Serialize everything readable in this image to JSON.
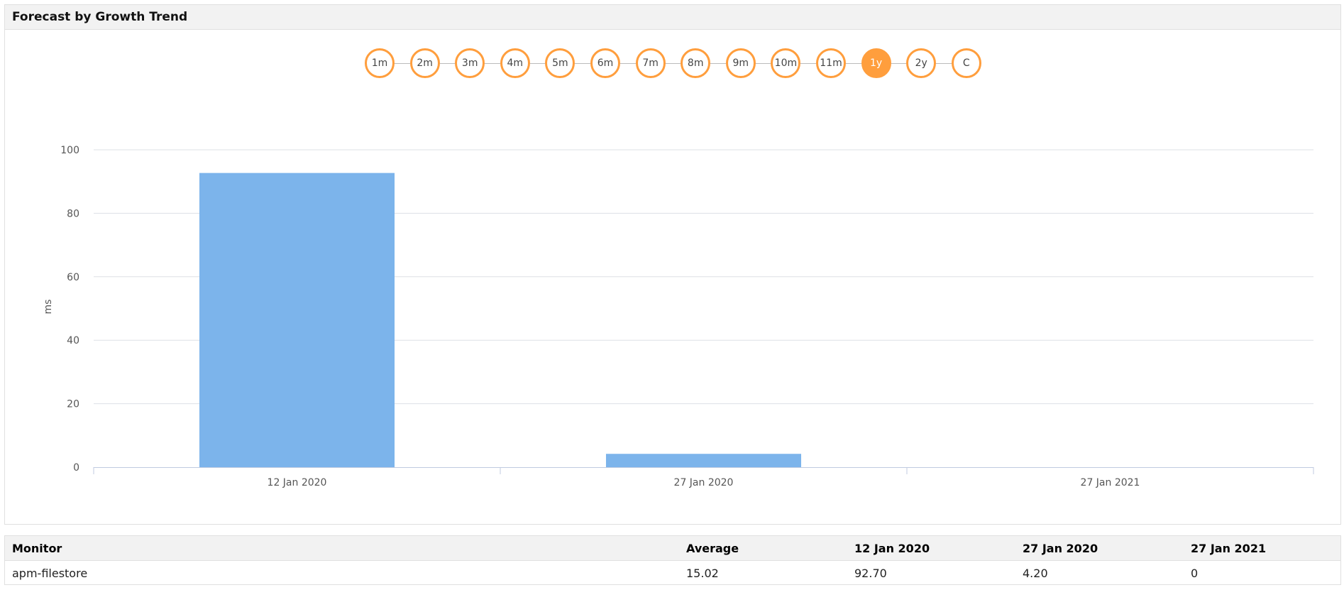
{
  "panel": {
    "title": "Forecast by Growth Trend"
  },
  "ranges": {
    "options": [
      "1m",
      "2m",
      "3m",
      "4m",
      "5m",
      "6m",
      "7m",
      "8m",
      "9m",
      "10m",
      "11m",
      "1y",
      "2y",
      "C"
    ],
    "selected": "1y",
    "accent": "#ff9e3d"
  },
  "chart_data": {
    "type": "bar",
    "categories": [
      "12 Jan 2020",
      "27 Jan 2020",
      "27 Jan 2021"
    ],
    "values": [
      92.7,
      4.2,
      0
    ],
    "ylabel": "ms",
    "xlabel": "",
    "ylim": [
      0,
      100
    ],
    "yticks": [
      "0",
      "20",
      "40",
      "60",
      "80",
      "100"
    ],
    "grid": true,
    "color": "#7cb4eb"
  },
  "table": {
    "headers": [
      "Monitor",
      "Average",
      "12 Jan 2020",
      "27 Jan 2020",
      "27 Jan 2021"
    ],
    "rows": [
      [
        "apm-filestore",
        "15.02",
        "92.70",
        "4.20",
        "0"
      ]
    ]
  }
}
